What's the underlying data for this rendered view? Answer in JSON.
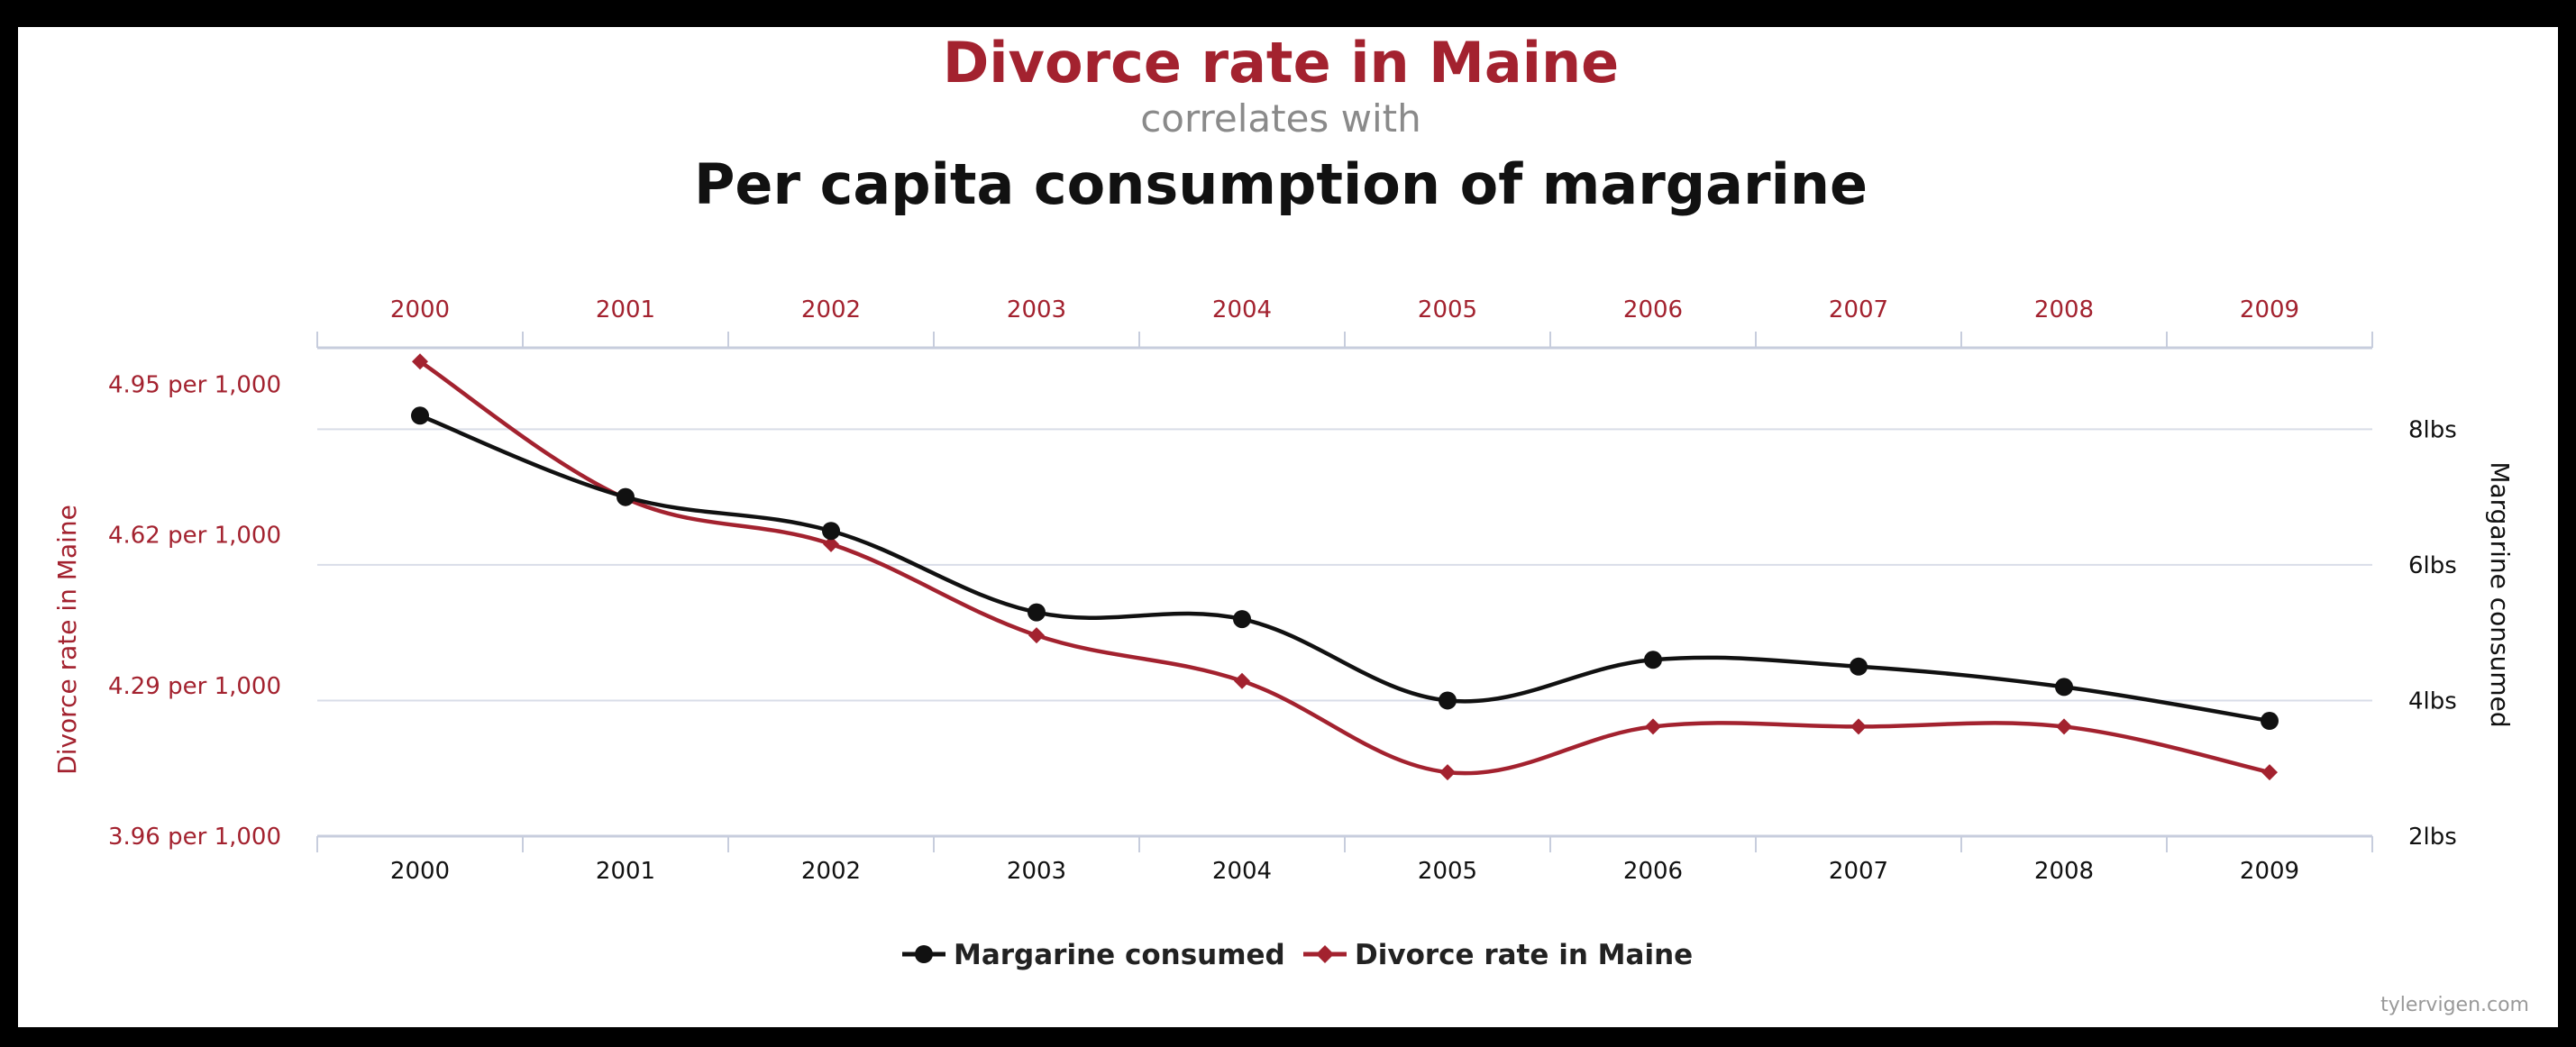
{
  "colors": {
    "red": "#a3222f",
    "black": "#111111",
    "subtitle_gray": "#8a8a8a",
    "grid": "#d9dde8",
    "axis": "#c7cddd",
    "credit_gray": "#999999"
  },
  "chart_data": {
    "type": "line",
    "title": "Divorce rate in Maine",
    "subtitle": "correlates with",
    "second_title": "Per capita consumption of margarine",
    "x": [
      "2000",
      "2001",
      "2002",
      "2003",
      "2004",
      "2005",
      "2006",
      "2007",
      "2008",
      "2009"
    ],
    "left_axis": {
      "label": "Divorce rate in Maine",
      "range": [
        3.96,
        5.03
      ],
      "ticks": [
        4.95,
        4.62,
        4.29,
        3.96
      ],
      "tick_labels": [
        "4.95 per 1,000",
        "4.62 per 1,000",
        "4.29 per 1,000",
        "3.96 per 1,000"
      ]
    },
    "right_axis": {
      "label": "Margarine consumed",
      "range": [
        2,
        9.2
      ],
      "ticks": [
        8,
        6,
        4,
        2
      ],
      "tick_labels": [
        "8lbs",
        "6lbs",
        "4lbs",
        "2lbs"
      ]
    },
    "series": [
      {
        "name": "Margarine consumed",
        "axis": "right",
        "color": "#111111",
        "marker": "circle",
        "values": [
          8.2,
          7.0,
          6.5,
          5.3,
          5.2,
          4.0,
          4.6,
          4.5,
          4.2,
          3.7
        ]
      },
      {
        "name": "Divorce rate in Maine",
        "axis": "left",
        "color": "#a3222f",
        "marker": "diamond",
        "values": [
          5.0,
          4.7,
          4.6,
          4.4,
          4.3,
          4.1,
          4.2,
          4.2,
          4.2,
          4.1
        ]
      }
    ],
    "grid": true,
    "legend_position": "bottom-center"
  },
  "credit": "tylervigen.com"
}
